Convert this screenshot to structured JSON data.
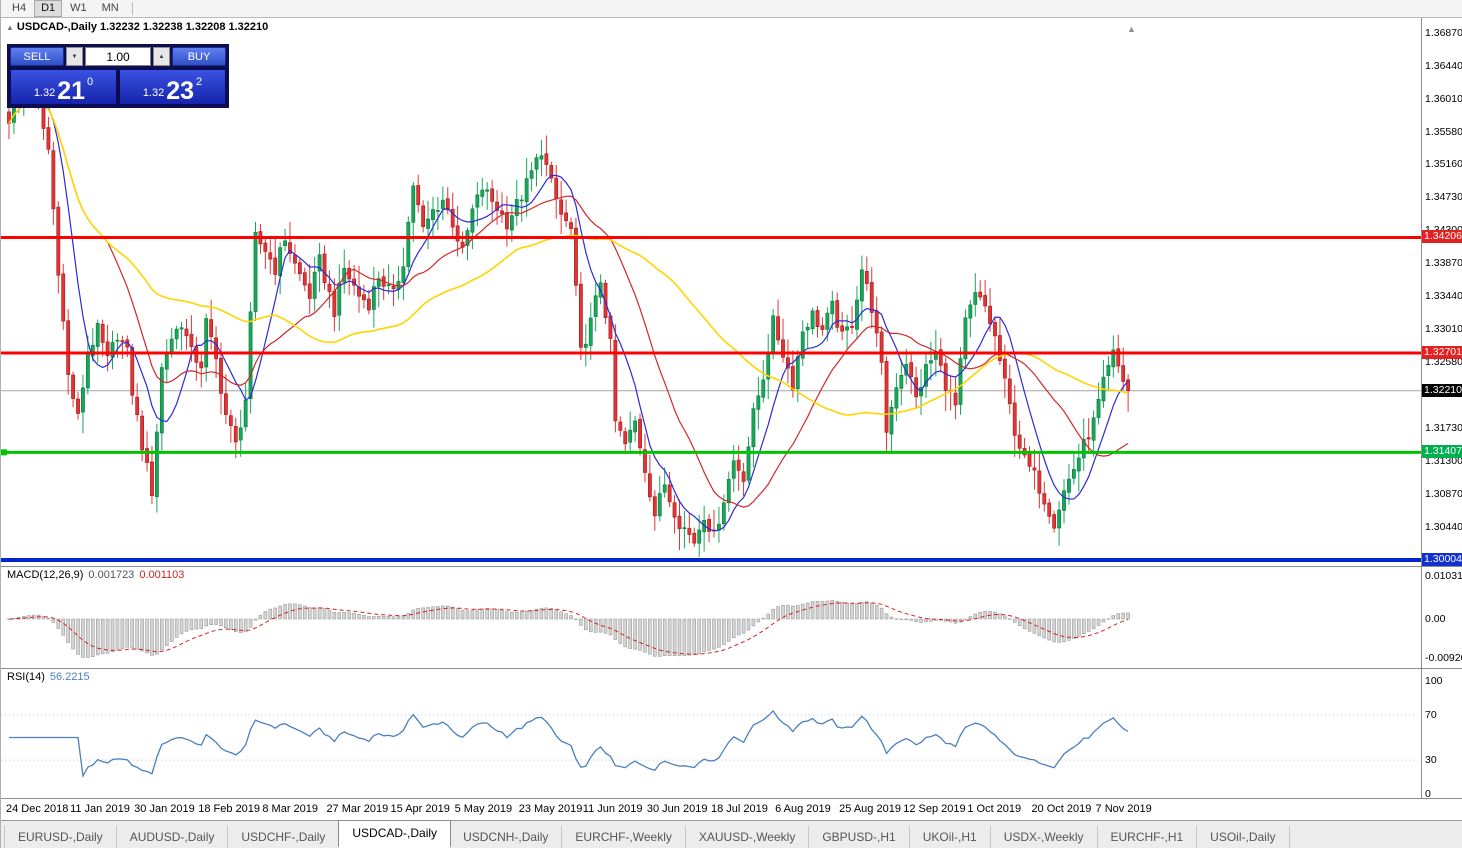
{
  "window": {
    "timeframes": [
      {
        "label": "H4",
        "active": false
      },
      {
        "label": "D1",
        "active": true
      },
      {
        "label": "W1",
        "active": false
      },
      {
        "label": "MN",
        "active": false
      }
    ]
  },
  "chart": {
    "info": "USDCAD-,Daily  1.32232 1.32238 1.32208 1.32210",
    "collapse_icon": "▲",
    "scroll_marker": "▲"
  },
  "trade_panel": {
    "sell_label": "SELL",
    "buy_label": "BUY",
    "volume": "1.00",
    "vol_down_icon": "▼",
    "vol_up_icon": "▲",
    "sell_price": {
      "base": "1.32",
      "big": "21",
      "sup": "0"
    },
    "buy_price": {
      "base": "1.32",
      "big": "23",
      "sup": "2"
    }
  },
  "chart_data": {
    "type": "candlestick",
    "symbol": "USDCAD-",
    "timeframe": "Daily",
    "ohlc_display": {
      "open": "1.32232",
      "high": "1.32238",
      "low": "1.32208",
      "close": "1.32210"
    },
    "candles": 228,
    "price_axis_ticks": [
      "1.36870",
      "1.36440",
      "1.36010",
      "1.35580",
      "1.35160",
      "1.34730",
      "1.34300",
      "1.33870",
      "1.33440",
      "1.33010",
      "1.32580",
      "1.31730",
      "1.31300",
      "1.30870",
      "1.30440"
    ],
    "levels": [
      {
        "label": "1.34206",
        "price": 1.34206,
        "color": "#ff0000",
        "badge": "#e22222",
        "width": 3
      },
      {
        "label": "1.32701",
        "price": 1.32701,
        "color": "#ff0000",
        "badge": "#e22222",
        "width": 3
      },
      {
        "label": "1.31407",
        "price": 1.31407,
        "color": "#00c400",
        "badge": "#00b050",
        "width": 3
      },
      {
        "label": "1.30004",
        "price": 1.30004,
        "color": "#0026cc",
        "badge": "#1133cc",
        "width": 4
      }
    ],
    "current_price": {
      "label": "1.32210",
      "price": 1.3221,
      "badge": "#000000",
      "line_color": "#a6a6a6"
    },
    "x_labels": [
      "24 Dec 2018",
      "11 Jan 2019",
      "30 Jan 2019",
      "18 Feb 2019",
      "8 Mar 2019",
      "27 Mar 2019",
      "15 Apr 2019",
      "5 May 2019",
      "23 May 2019",
      "11 Jun 2019",
      "30 Jun 2019",
      "18 Jul 2019",
      "6 Aug 2019",
      "25 Aug 2019",
      "12 Sep 2019",
      "1 Oct 2019",
      "20 Oct 2019",
      "7 Nov 2019"
    ],
    "price_path": [
      [
        0,
        1.3575
      ],
      [
        2,
        1.36
      ],
      [
        4,
        1.3618
      ],
      [
        6,
        1.359
      ],
      [
        8,
        1.3535
      ],
      [
        10,
        1.338
      ],
      [
        12,
        1.324
      ],
      [
        14,
        1.3185
      ],
      [
        16,
        1.327
      ],
      [
        18,
        1.33
      ],
      [
        20,
        1.326
      ],
      [
        22,
        1.3295
      ],
      [
        24,
        1.327
      ],
      [
        25,
        1.322
      ],
      [
        27,
        1.315
      ],
      [
        29,
        1.309
      ],
      [
        31,
        1.325
      ],
      [
        33,
        1.329
      ],
      [
        35,
        1.331
      ],
      [
        37,
        1.327
      ],
      [
        39,
        1.3255
      ],
      [
        40,
        1.331
      ],
      [
        42,
        1.326
      ],
      [
        44,
        1.319
      ],
      [
        46,
        1.315
      ],
      [
        48,
        1.321
      ],
      [
        50,
        1.342
      ],
      [
        52,
        1.3405
      ],
      [
        54,
        1.338
      ],
      [
        56,
        1.342
      ],
      [
        58,
        1.3385
      ],
      [
        61,
        1.3345
      ],
      [
        63,
        1.339
      ],
      [
        66,
        1.3325
      ],
      [
        68,
        1.338
      ],
      [
        71,
        1.3345
      ],
      [
        73,
        1.3335
      ],
      [
        75,
        1.337
      ],
      [
        78,
        1.3345
      ],
      [
        80,
        1.339
      ],
      [
        82,
        1.349
      ],
      [
        84,
        1.343
      ],
      [
        86,
        1.3455
      ],
      [
        88,
        1.347
      ],
      [
        90,
        1.344
      ],
      [
        92,
        1.34
      ],
      [
        94,
        1.3455
      ],
      [
        96,
        1.3485
      ],
      [
        99,
        1.346
      ],
      [
        101,
        1.344
      ],
      [
        104,
        1.3475
      ],
      [
        106,
        1.3505
      ],
      [
        108,
        1.3535
      ],
      [
        110,
        1.349
      ],
      [
        112,
        1.345
      ],
      [
        114,
        1.343
      ],
      [
        116,
        1.327
      ],
      [
        118,
        1.331
      ],
      [
        120,
        1.3365
      ],
      [
        122,
        1.328
      ],
      [
        123,
        1.318
      ],
      [
        125,
        1.315
      ],
      [
        127,
        1.318
      ],
      [
        129,
        1.312
      ],
      [
        131,
        1.306
      ],
      [
        133,
        1.31
      ],
      [
        134,
        1.308
      ],
      [
        136,
        1.305
      ],
      [
        139,
        1.3025
      ],
      [
        141,
        1.306
      ],
      [
        143,
        1.303
      ],
      [
        145,
        1.308
      ],
      [
        147,
        1.313
      ],
      [
        149,
        1.311
      ],
      [
        151,
        1.319
      ],
      [
        153,
        1.324
      ],
      [
        155,
        1.331
      ],
      [
        157,
        1.327
      ],
      [
        159,
        1.323
      ],
      [
        161,
        1.33
      ],
      [
        163,
        1.332
      ],
      [
        165,
        1.33
      ],
      [
        167,
        1.333
      ],
      [
        169,
        1.329
      ],
      [
        171,
        1.331
      ],
      [
        173,
        1.338
      ],
      [
        175,
        1.333
      ],
      [
        177,
        1.325
      ],
      [
        178,
        1.317
      ],
      [
        180,
        1.323
      ],
      [
        182,
        1.326
      ],
      [
        184,
        1.321
      ],
      [
        186,
        1.325
      ],
      [
        188,
        1.327
      ],
      [
        190,
        1.323
      ],
      [
        192,
        1.32
      ],
      [
        194,
        1.331
      ],
      [
        196,
        1.3345
      ],
      [
        198,
        1.333
      ],
      [
        200,
        1.329
      ],
      [
        202,
        1.323
      ],
      [
        204,
        1.317
      ],
      [
        206,
        1.313
      ],
      [
        208,
        1.311
      ],
      [
        210,
        1.308
      ],
      [
        212,
        1.305
      ],
      [
        214,
        1.309
      ],
      [
        216,
        1.312
      ],
      [
        218,
        1.315
      ],
      [
        220,
        1.318
      ],
      [
        222,
        1.323
      ],
      [
        224,
        1.3268
      ],
      [
        226,
        1.3235
      ],
      [
        227,
        1.3221
      ]
    ],
    "candle_colors": {
      "up": "#17a75a",
      "up_border": "#0b7a3c",
      "down": "#e23434",
      "down_border": "#a31c1c"
    },
    "moving_averages": [
      {
        "period": 8,
        "color": "#2b2bd9"
      },
      {
        "period": 21,
        "color": "#d02828"
      },
      {
        "period": 55,
        "color": "#ffd400"
      }
    ],
    "indicators": {
      "macd": {
        "label": "MACD(12,26,9)",
        "value_main": "0.001723",
        "value_signal": "0.001103",
        "axis": [
          "0.010311",
          "0.00",
          "-0.009203"
        ]
      },
      "rsi": {
        "label": "RSI(14)",
        "value": "56.2215",
        "axis": [
          "100",
          "70",
          "30",
          "0"
        ],
        "levels": [
          70,
          30
        ]
      }
    }
  },
  "tabs": {
    "active_index": 3,
    "items": [
      "EURUSD-,Daily",
      "AUDUSD-,Daily",
      "USDCHF-,Daily",
      "USDCAD-,Daily",
      "USDCNH-,Daily",
      "EURCHF-,Weekly",
      "XAUUSD-,Weekly",
      "GBPUSD-,H1",
      "UKOil-,H1",
      "USDX-,Weekly",
      "EURCHF-,H1",
      "USOil-,Daily"
    ]
  }
}
